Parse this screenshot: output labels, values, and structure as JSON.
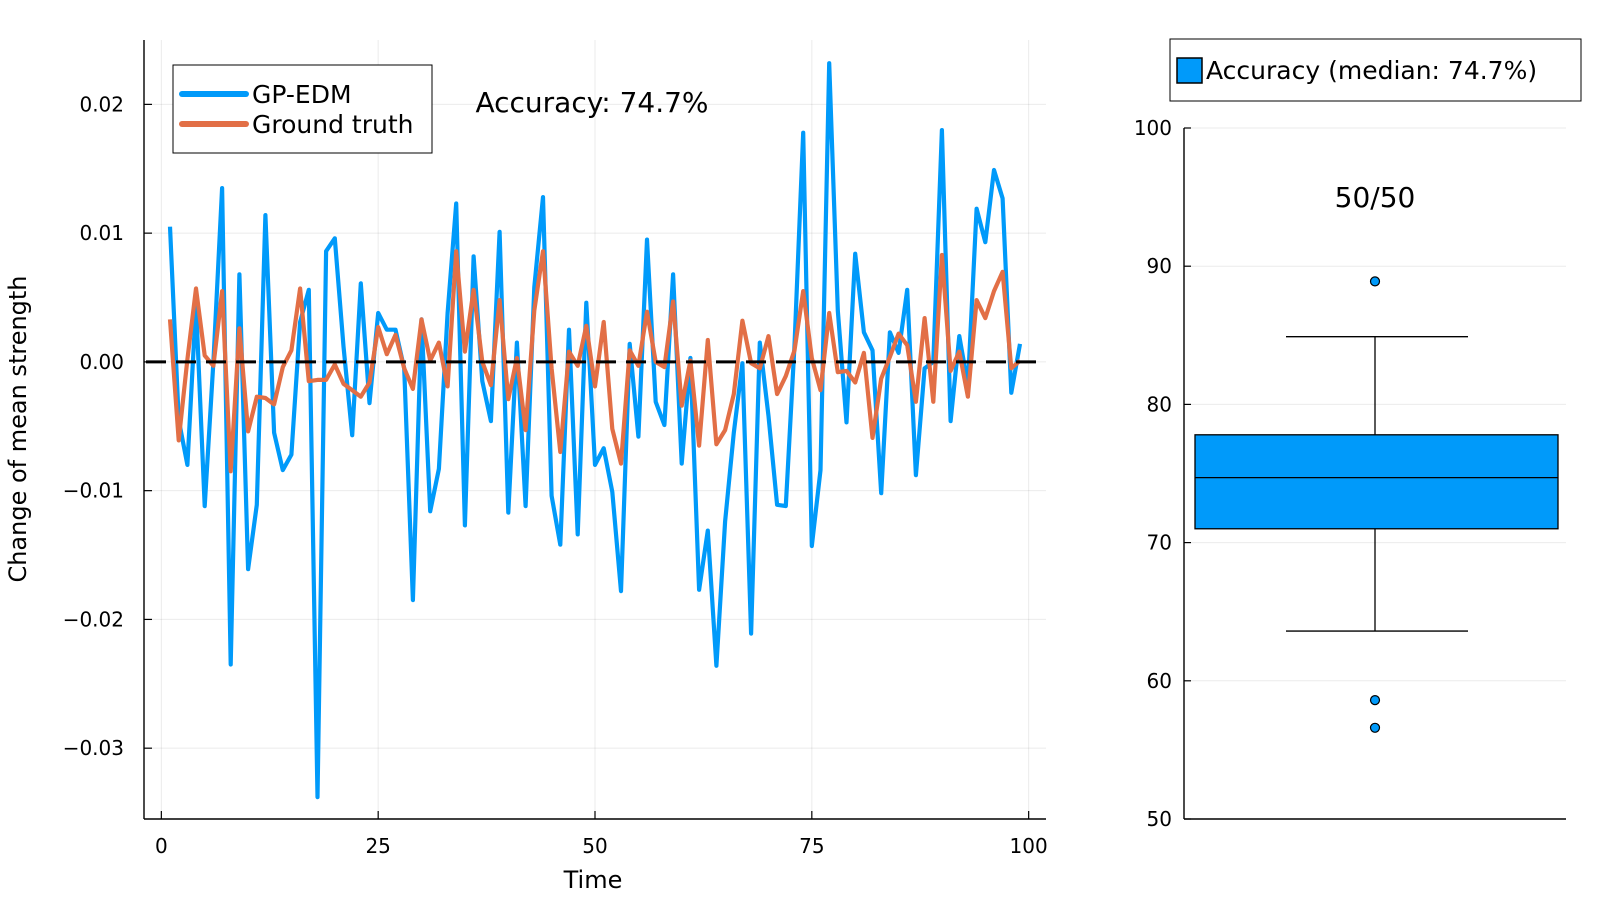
{
  "chart_data": [
    {
      "type": "line",
      "xlabel": "Time",
      "ylabel": "Change of mean strength",
      "xlim": [
        -2,
        102
      ],
      "ylim": [
        -0.0355,
        0.025
      ],
      "xticks": [
        0,
        25,
        50,
        75,
        100
      ],
      "xtick_labels": [
        "0",
        "25",
        "50",
        "75",
        "100"
      ],
      "yticks": [
        -0.03,
        -0.02,
        -0.01,
        0.0,
        0.01,
        0.02
      ],
      "ytick_labels": [
        "−0.03",
        "−0.02",
        "−0.01",
        "0.00",
        "0.01",
        "0.02"
      ],
      "grid": true,
      "legend_position": "top-left",
      "annotation": "Accuracy: 74.7%",
      "reference_line": {
        "y": 0,
        "style": "dashed",
        "color": "#000000"
      },
      "x": [
        1,
        2,
        3,
        4,
        5,
        6,
        7,
        8,
        9,
        10,
        11,
        12,
        13,
        14,
        15,
        16,
        17,
        18,
        19,
        20,
        21,
        22,
        23,
        24,
        25,
        26,
        27,
        28,
        29,
        30,
        31,
        32,
        33,
        34,
        35,
        36,
        37,
        38,
        39,
        40,
        41,
        42,
        43,
        44,
        45,
        46,
        47,
        48,
        49,
        50,
        51,
        52,
        53,
        54,
        55,
        56,
        57,
        58,
        59,
        60,
        61,
        62,
        63,
        64,
        65,
        66,
        67,
        68,
        69,
        70,
        71,
        72,
        73,
        74,
        75,
        76,
        77,
        78,
        79,
        80,
        81,
        82,
        83,
        84,
        85,
        86,
        87,
        88,
        89,
        90,
        91,
        92,
        93,
        94,
        95,
        96,
        97,
        98,
        99
      ],
      "series": [
        {
          "name": "GP-EDM",
          "color": "#009AFA",
          "values": [
            0.0105,
            -0.0045,
            -0.008,
            0.0045,
            -0.0112,
            0.0,
            0.0135,
            -0.0235,
            0.0068,
            -0.0161,
            -0.0111,
            0.0114,
            -0.0055,
            -0.0084,
            -0.0072,
            0.0031,
            0.0056,
            -0.0338,
            0.0086,
            0.0096,
            0.0012,
            -0.0057,
            0.0061,
            -0.0032,
            0.0038,
            0.0025,
            0.0025,
            -0.0005,
            -0.0185,
            0.0033,
            -0.0116,
            -0.0083,
            0.0038,
            0.0123,
            -0.0127,
            0.0082,
            -0.0015,
            -0.0046,
            0.0101,
            -0.0117,
            0.0015,
            -0.0112,
            0.0058,
            0.0128,
            -0.0104,
            -0.0142,
            0.0025,
            -0.0134,
            0.0046,
            -0.008,
            -0.0067,
            -0.0101,
            -0.0178,
            0.0014,
            -0.0058,
            0.0095,
            -0.0031,
            -0.0049,
            0.0068,
            -0.0079,
            0.0003,
            -0.0177,
            -0.0131,
            -0.0236,
            -0.0124,
            -0.0055,
            -0.0001,
            -0.0211,
            0.0015,
            -0.0042,
            -0.0111,
            -0.0112,
            0.0013,
            0.0178,
            -0.0143,
            -0.0084,
            0.0232,
            0.004,
            -0.0047,
            0.0084,
            0.0023,
            0.0009,
            -0.0102,
            0.0023,
            0.0007,
            0.0056,
            -0.0088,
            -0.0005,
            0.0,
            0.018,
            -0.0046,
            0.002,
            -0.0018,
            0.0119,
            0.0093,
            0.0149,
            0.0127,
            -0.0024,
            0.0014
          ]
        },
        {
          "name": "Ground truth",
          "color": "#E26F46",
          "values": [
            0.0033,
            -0.0061,
            0.0002,
            0.0057,
            0.0005,
            -0.0003,
            0.0055,
            -0.0085,
            0.0026,
            -0.0054,
            -0.0027,
            -0.0028,
            -0.0033,
            -0.0004,
            0.0009,
            0.0057,
            -0.0015,
            -0.0014,
            -0.0014,
            -0.0002,
            -0.0017,
            -0.0022,
            -0.0027,
            -0.0016,
            0.0027,
            0.0006,
            0.0021,
            -0.0005,
            -0.0021,
            0.0033,
            0.0001,
            0.0015,
            -0.0019,
            0.0086,
            0.0008,
            0.0056,
            0.0,
            -0.0018,
            0.0048,
            -0.0029,
            0.0003,
            -0.0053,
            0.004,
            0.0086,
            -0.0005,
            -0.007,
            0.0008,
            -0.0003,
            0.0028,
            -0.0019,
            0.0031,
            -0.0052,
            -0.0079,
            0.0009,
            -0.0003,
            0.0039,
            0.0,
            -0.0004,
            0.0047,
            -0.0034,
            0.0001,
            -0.0065,
            0.0017,
            -0.0064,
            -0.0053,
            -0.0025,
            0.0032,
            -0.0001,
            -0.0005,
            0.002,
            -0.0025,
            -0.0011,
            0.0009,
            0.0055,
            0.0003,
            -0.0022,
            0.0038,
            -0.0008,
            -0.0007,
            -0.0016,
            0.0007,
            -0.0059,
            -0.0013,
            0.0004,
            0.0022,
            0.0013,
            -0.0031,
            0.0034,
            -0.0031,
            0.0083,
            -0.0007,
            0.0008,
            -0.0027,
            0.0048,
            0.0034,
            0.0055,
            0.007,
            -0.0005,
            0.0001
          ]
        }
      ]
    },
    {
      "type": "box",
      "ylim": [
        50,
        100
      ],
      "yticks": [
        50,
        60,
        70,
        80,
        90,
        100
      ],
      "ytick_labels": [
        "50",
        "60",
        "70",
        "80",
        "90",
        "100"
      ],
      "grid": true,
      "legend_position": "top",
      "annotation": "50/50",
      "series": [
        {
          "name": "Accuracy (median: 74.7%)",
          "color": "#009AFA",
          "q1": 71.0,
          "median": 74.7,
          "q3": 77.8,
          "whisker_low": 63.6,
          "whisker_high": 84.9,
          "outliers": [
            88.9,
            58.6,
            56.6
          ]
        }
      ]
    }
  ]
}
